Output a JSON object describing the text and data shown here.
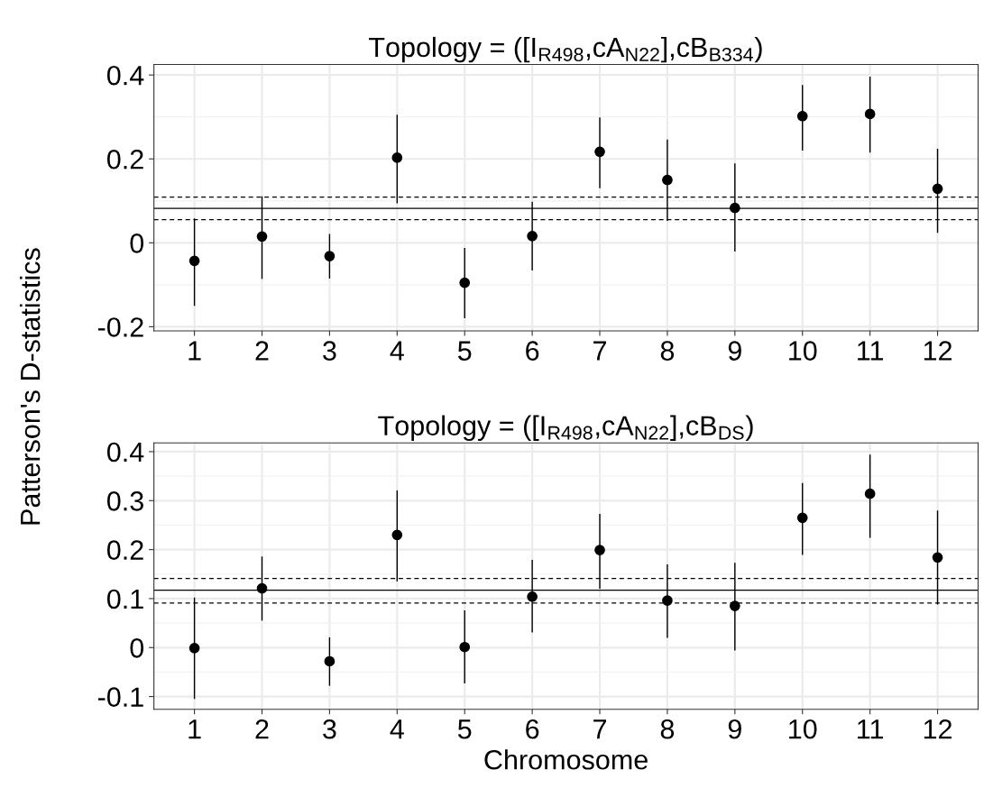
{
  "chart_data": [
    {
      "type": "scatter",
      "title": "Topology = ([I$_{R498}$,cA$_{N22}$],cB$_{B334}$)",
      "ylabel": "Patterson's D-statistics",
      "categories": [
        "1",
        "2",
        "3",
        "4",
        "5",
        "6",
        "7",
        "8",
        "9",
        "10",
        "11",
        "12"
      ],
      "values": [
        -0.043,
        0.015,
        -0.032,
        0.203,
        -0.095,
        0.016,
        0.217,
        0.15,
        0.083,
        0.302,
        0.307,
        0.129
      ],
      "errors": [
        [
          -0.15,
          0.058
        ],
        [
          -0.086,
          0.111
        ],
        [
          -0.085,
          0.021
        ],
        [
          0.094,
          0.305
        ],
        [
          -0.18,
          -0.012
        ],
        [
          -0.066,
          0.098
        ],
        [
          0.13,
          0.299
        ],
        [
          0.052,
          0.246
        ],
        [
          -0.021,
          0.189
        ],
        [
          0.22,
          0.376
        ],
        [
          0.215,
          0.396
        ],
        [
          0.024,
          0.224
        ]
      ],
      "color": "#000000",
      "marker": "circle",
      "ylim": [
        -0.21,
        0.425
      ],
      "yticks": [
        -0.2,
        0,
        0.2,
        0.4
      ],
      "ref_lines": [
        {
          "axis": "y",
          "value": 0.082,
          "line_style": "solid"
        },
        {
          "axis": "y",
          "value": 0.109,
          "line_style": "dashed"
        },
        {
          "axis": "y",
          "value": 0.055,
          "line_style": "dashed"
        }
      ],
      "grid": true
    },
    {
      "type": "scatter",
      "title": "Topology = ([I$_{R498}$,cA$_{N22}$],cB$_{DS}$)",
      "xlabel": "Chromosome",
      "categories": [
        "1",
        "2",
        "3",
        "4",
        "5",
        "6",
        "7",
        "8",
        "9",
        "10",
        "11",
        "12"
      ],
      "values": [
        -0.001,
        0.121,
        -0.028,
        0.23,
        0.001,
        0.104,
        0.199,
        0.096,
        0.085,
        0.265,
        0.314,
        0.184
      ],
      "errors": [
        [
          -0.105,
          0.102
        ],
        [
          0.055,
          0.186
        ],
        [
          -0.078,
          0.021
        ],
        [
          0.135,
          0.321
        ],
        [
          -0.073,
          0.076
        ],
        [
          0.031,
          0.179
        ],
        [
          0.12,
          0.273
        ],
        [
          0.02,
          0.17
        ],
        [
          -0.006,
          0.173
        ],
        [
          0.189,
          0.336
        ],
        [
          0.224,
          0.394
        ],
        [
          0.088,
          0.28
        ]
      ],
      "color": "#000000",
      "marker": "circle",
      "ylim": [
        -0.126,
        0.418
      ],
      "yticks": [
        -0.1,
        0,
        0.1,
        0.2,
        0.3,
        0.4
      ],
      "ref_lines": [
        {
          "axis": "y",
          "value": 0.117,
          "line_style": "solid"
        },
        {
          "axis": "y",
          "value": 0.141,
          "line_style": "dashed"
        },
        {
          "axis": "y",
          "value": 0.091,
          "line_style": "dashed"
        }
      ],
      "grid": true
    }
  ]
}
